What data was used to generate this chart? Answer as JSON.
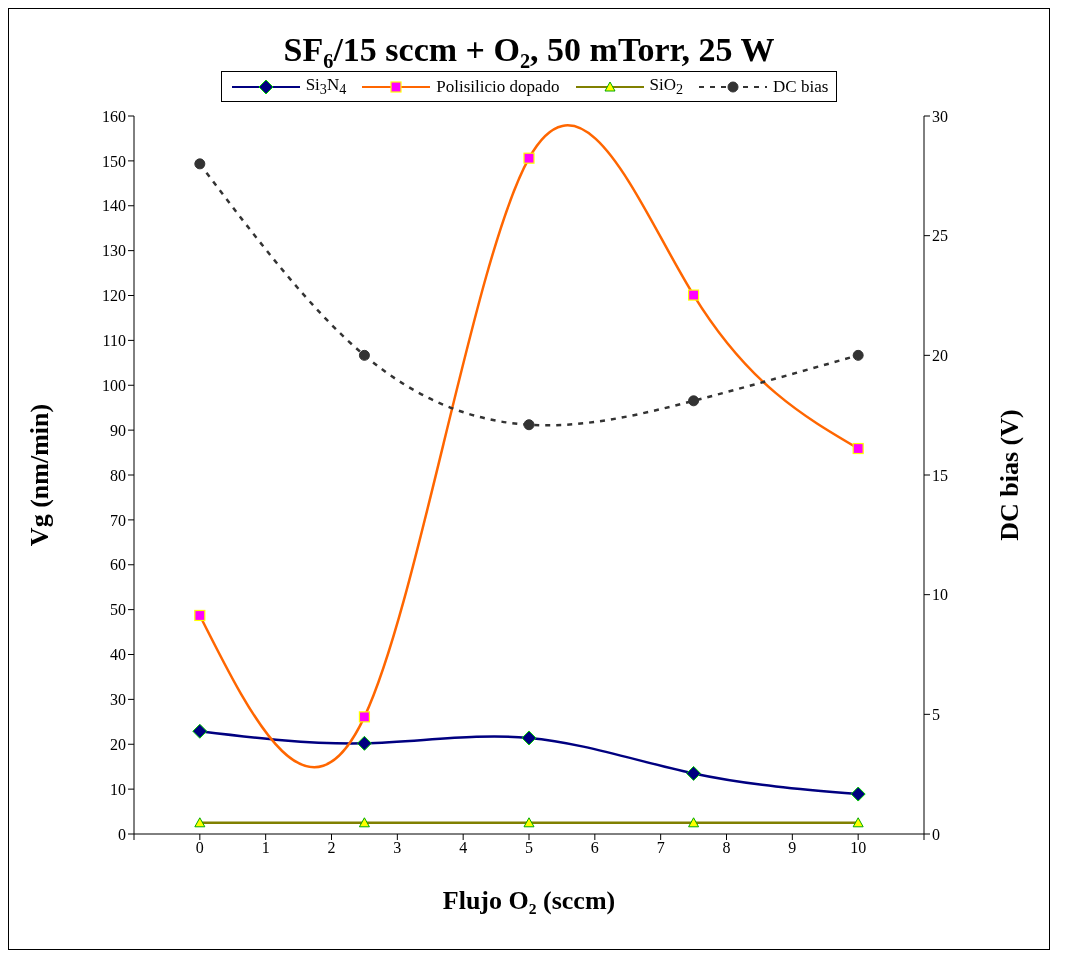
{
  "chart_data": {
    "type": "line",
    "title": "SF₆/15 sccm + O₂, 50 mTorr, 25 W",
    "xlabel": "Flujo O₂ (sccm)",
    "ylabel": "Vg (nm/min)",
    "y2label": "DC bias (V)",
    "x": [
      0,
      2.5,
      5,
      7.5,
      10
    ],
    "xlim": [
      -1,
      11
    ],
    "xticks": [
      {
        "value": -1,
        "label": null
      },
      0,
      1,
      2,
      3,
      4,
      5,
      6,
      7,
      8,
      9,
      10,
      {
        "value": 11,
        "label": null
      }
    ],
    "ylim": [
      0,
      160
    ],
    "yticks": [
      0,
      10,
      20,
      30,
      40,
      50,
      60,
      70,
      80,
      90,
      100,
      110,
      120,
      130,
      140,
      150,
      160
    ],
    "y2lim": [
      0,
      30
    ],
    "y2ticks": [
      0,
      5,
      10,
      15,
      20,
      25,
      30
    ],
    "legend": "top",
    "series": [
      {
        "name": "Si$_{3}$N$_{4}$",
        "color": "#000080",
        "values": [
          22.9,
          20.2,
          21.4,
          13.5,
          8.9
        ],
        "marker": "diamond",
        "line_style": "solid"
      },
      {
        "name": "Polisilicio dopado",
        "color": "#ff6600",
        "values": [
          48.7,
          26.1,
          150.6,
          120.1,
          85.9
        ],
        "marker": "square",
        "line_style": "solid"
      },
      {
        "name": "SiO$_{2}$",
        "color": "#808000",
        "values": [
          2.5,
          2.5,
          2.5,
          2.5,
          2.5
        ],
        "marker": "triangle",
        "line_style": "solid"
      },
      {
        "name": "DC bias",
        "color": "#333333",
        "values": [
          28,
          20,
          17.1,
          18.1,
          20
        ],
        "marker": "circle",
        "line_style": "dashed",
        "axis": "y2"
      }
    ]
  }
}
